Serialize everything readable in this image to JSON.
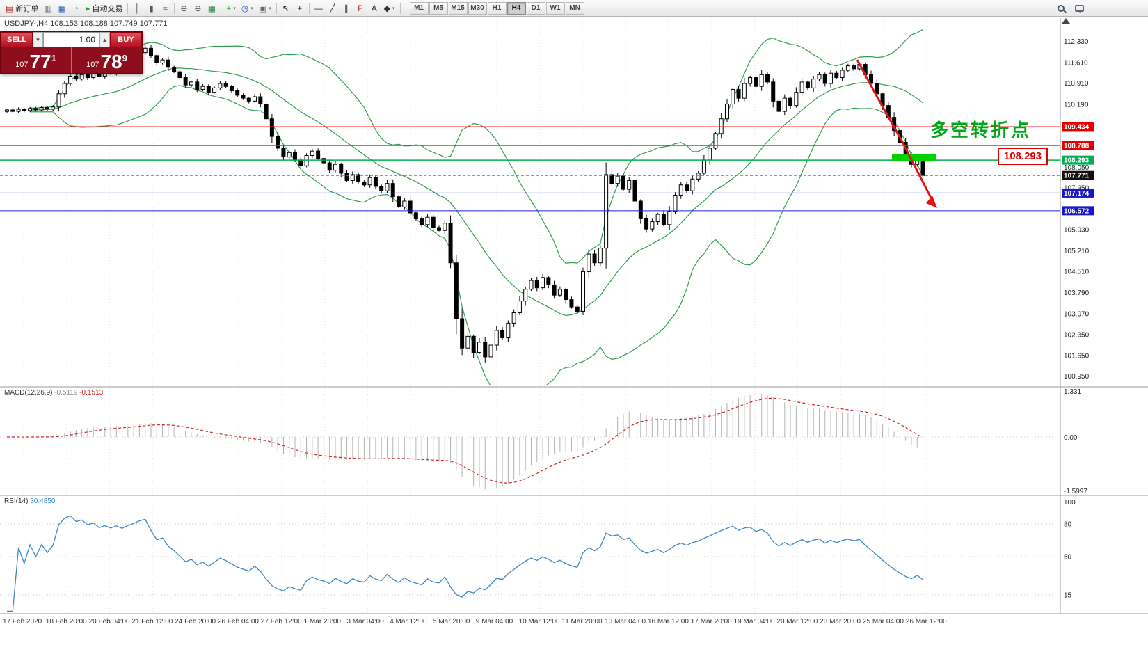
{
  "toolbar": {
    "left_items": [
      {
        "name": "new-order-button",
        "glyph": "▤",
        "color": "#b03030",
        "label": "新订单"
      },
      {
        "name": "charts-grid-button",
        "glyph": "▥",
        "color": "#5a6a7a"
      },
      {
        "name": "profiles-button",
        "glyph": "▦",
        "color": "#3366bb"
      },
      {
        "name": "refresh-button",
        "glyph": "◔",
        "color": "#22a090"
      },
      {
        "name": "autotrading-button",
        "glyph": "▸",
        "color": "#22a022",
        "label": "自动交易"
      },
      {
        "sep": true
      },
      {
        "name": "bar-chart-button",
        "glyph": "║",
        "color": "#555555"
      },
      {
        "name": "candlestick-button",
        "glyph": "▮",
        "color": "#555555"
      },
      {
        "name": "line-chart-button",
        "glyph": "≈",
        "color": "#555555"
      },
      {
        "sep": true
      },
      {
        "name": "zoom-in-button",
        "glyph": "⊕",
        "color": "#444444"
      },
      {
        "name": "zoom-out-button",
        "glyph": "⊖",
        "color": "#444444"
      },
      {
        "name": "tile-windows-button",
        "glyph": "▦",
        "color": "#33884f"
      },
      {
        "sep": true
      },
      {
        "name": "indicators-button",
        "glyph": "+",
        "color": "#11aa11",
        "caret": true
      },
      {
        "name": "periods-button",
        "glyph": "◷",
        "color": "#2255bb",
        "caret": true
      },
      {
        "name": "templates-button",
        "glyph": "▣",
        "color": "#666666",
        "caret": true
      },
      {
        "sep": true
      },
      {
        "name": "cursor-button",
        "glyph": "↖",
        "color": "#222222"
      },
      {
        "name": "crosshair-button",
        "glyph": "+",
        "color": "#222222"
      },
      {
        "sep": true
      },
      {
        "name": "hline-button",
        "glyph": "—",
        "color": "#333333"
      },
      {
        "name": "trendline-button",
        "glyph": "╱",
        "color": "#333333"
      },
      {
        "name": "channel-button",
        "glyph": "∥",
        "color": "#333333"
      },
      {
        "name": "fibonacci-button",
        "glyph": "F",
        "color": "#aa3333",
        "sub": "E"
      },
      {
        "name": "text-button",
        "glyph": "A",
        "color": "#333333"
      },
      {
        "name": "arrows-button",
        "glyph": "◆",
        "color": "#333333",
        "caret": true
      },
      {
        "sep": true
      }
    ],
    "timeframes": [
      "M1",
      "M5",
      "M15",
      "M30",
      "H1",
      "H4",
      "D1",
      "W1",
      "MN"
    ],
    "active_timeframe": "H4"
  },
  "trade_panel": {
    "sell_label": "SELL",
    "buy_label": "BUY",
    "volume": "1.00",
    "sell_price_prefix": "107",
    "sell_price_big": "77",
    "sell_price_sup": "1",
    "buy_price_prefix": "107",
    "buy_price_big": "78",
    "buy_price_sup": "9"
  },
  "chart_data": {
    "type": "candlestick",
    "symbol": "USDJPY",
    "period": "H4",
    "title": "USDJPY-,H4",
    "ohlc_text": "108.153 108.188 107.749 107.771",
    "bollinger_period": 20,
    "closes": [
      110.0,
      109.95,
      110.02,
      109.98,
      110.05,
      110.0,
      110.08,
      110.03,
      110.1,
      110.55,
      110.9,
      111.15,
      111.05,
      111.2,
      111.1,
      111.25,
      111.15,
      111.3,
      111.25,
      111.4,
      111.35,
      111.55,
      111.7,
      111.95,
      112.1,
      111.85,
      111.6,
      111.7,
      111.45,
      111.3,
      111.1,
      110.85,
      110.95,
      110.7,
      110.8,
      110.6,
      110.75,
      110.9,
      110.8,
      110.65,
      110.5,
      110.4,
      110.3,
      110.45,
      110.2,
      109.7,
      109.1,
      108.7,
      108.4,
      108.55,
      108.3,
      108.1,
      108.45,
      108.6,
      108.35,
      108.2,
      107.95,
      108.15,
      107.85,
      107.6,
      107.8,
      107.55,
      107.45,
      107.7,
      107.4,
      107.25,
      107.5,
      107.05,
      106.7,
      106.9,
      106.5,
      106.3,
      106.1,
      106.35,
      106.0,
      105.9,
      106.15,
      104.8,
      102.9,
      101.9,
      102.3,
      101.75,
      102.1,
      101.6,
      102.0,
      102.5,
      102.25,
      102.75,
      103.1,
      103.5,
      103.9,
      104.2,
      103.95,
      104.3,
      104.05,
      103.7,
      103.9,
      103.55,
      103.3,
      103.15,
      104.5,
      105.1,
      104.8,
      105.3,
      107.8,
      107.5,
      107.75,
      107.3,
      107.6,
      106.9,
      106.3,
      105.95,
      106.2,
      106.45,
      106.1,
      106.55,
      107.1,
      107.45,
      107.25,
      107.65,
      107.85,
      108.3,
      108.7,
      109.2,
      109.7,
      110.2,
      110.7,
      110.4,
      110.9,
      111.1,
      110.8,
      111.2,
      110.95,
      110.3,
      109.95,
      110.4,
      110.15,
      110.6,
      110.95,
      110.75,
      111.05,
      111.2,
      110.9,
      111.25,
      111.1,
      111.35,
      111.5,
      111.4,
      111.55,
      111.2,
      110.9,
      110.55,
      110.15,
      109.75,
      109.3,
      108.9,
      108.45,
      108.15,
      108.35,
      107.771
    ],
    "price_axis_labels": [
      112.33,
      111.61,
      110.91,
      110.19,
      108.05,
      107.35,
      105.93,
      105.21,
      104.51,
      103.79,
      103.07,
      102.35,
      101.65,
      100.95
    ],
    "price_badges": [
      {
        "text": "109.434",
        "price": 109.434,
        "bg": "#e00000"
      },
      {
        "text": "108.788",
        "price": 108.788,
        "bg": "#e00000"
      },
      {
        "text": "108.293",
        "price": 108.293,
        "bg": "#00b050"
      },
      {
        "text": "107.771",
        "price": 107.771,
        "bg": "#111111"
      },
      {
        "text": "107.174",
        "price": 107.174,
        "bg": "#1818c8"
      },
      {
        "text": "106.572",
        "price": 106.572,
        "bg": "#1818c8"
      }
    ],
    "level_lines": [
      {
        "price": 109.434,
        "color": "#ff2020",
        "w": 1
      },
      {
        "price": 108.788,
        "color": "#ff2020",
        "w": 1
      },
      {
        "price": 108.293,
        "color": "#00b050",
        "w": 1.5
      },
      {
        "price": 107.174,
        "color": "#2222dd",
        "w": 1
      },
      {
        "price": 106.572,
        "color": "#2222dd",
        "w": 1
      }
    ],
    "current_price": {
      "price": 107.771,
      "text": "107.771"
    },
    "time_labels": [
      "17 Feb 2020",
      "18 Feb 20:00",
      "20 Feb 04:00",
      "21 Feb 12:00",
      "24 Feb 20:00",
      "26 Feb 04:00",
      "27 Feb 12:00",
      "1 Mar 23:00",
      "3 Mar 04:00",
      "4 Mar 12:00",
      "5 Mar 20:00",
      "9 Mar 04:00",
      "10 Mar 12:00",
      "11 Mar 20:00",
      "13 Mar 04:00",
      "16 Mar 12:00",
      "17 Mar 20:00",
      "19 Mar 04:00",
      "20 Mar 12:00",
      "23 Mar 20:00",
      "25 Mar 04:00",
      "26 Mar 12:00"
    ],
    "macd": {
      "name": "MACD(12,26,9)",
      "value_main": "-0.5119",
      "value_signal": "-0.1513",
      "fast": 12,
      "slow": 26,
      "signal": 9,
      "axis_labels": [
        "1.331",
        "0.00",
        "-1.5997"
      ]
    },
    "rsi": {
      "name": "RSI(14)",
      "value": "30.4850",
      "period": 14,
      "levels": [
        80,
        50,
        15
      ],
      "axis_labels": [
        "100",
        "80",
        "50",
        "15"
      ]
    },
    "annotation_text": "多空转折点",
    "price_tag": "108.293",
    "colors": {
      "band": "#2f9e4f",
      "grid": "#e7e7e7",
      "hist": "#b2b2b2",
      "signal": "#cc2222",
      "rsi_line": "#3c86c8",
      "arrow": "#e01515",
      "highlight": "#00d300",
      "up_fill": "#ffffff",
      "down_fill": "#000000",
      "outline": "#000000"
    }
  }
}
